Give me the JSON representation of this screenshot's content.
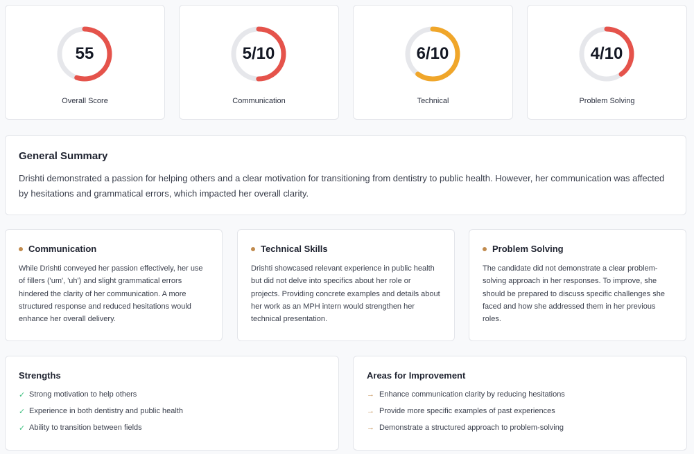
{
  "colors": {
    "low": "#e5534b",
    "mid": "#f0a62a",
    "track": "#e6e7eb",
    "bullet": "#c18b4e",
    "check": "#3fbf7f"
  },
  "scores": [
    {
      "display": "55",
      "label": "Overall Score",
      "fraction": 0.55,
      "color": "#e5534b"
    },
    {
      "display": "5/10",
      "label": "Communication",
      "fraction": 0.5,
      "color": "#e5534b"
    },
    {
      "display": "6/10",
      "label": "Technical",
      "fraction": 0.6,
      "color": "#f0a62a"
    },
    {
      "display": "4/10",
      "label": "Problem Solving",
      "fraction": 0.4,
      "color": "#e5534b"
    }
  ],
  "summary": {
    "title": "General Summary",
    "text": "Drishti demonstrated a passion for helping others and a clear motivation for transitioning from dentistry to public health. However, her communication was affected by hesitations and grammatical errors, which impacted her overall clarity."
  },
  "details": [
    {
      "title": "Communication",
      "text": "While Drishti conveyed her passion effectively, her use of fillers ('um', 'uh') and slight grammatical errors hindered the clarity of her communication. A more structured response and reduced hesitations would enhance her overall delivery."
    },
    {
      "title": "Technical Skills",
      "text": "Drishti showcased relevant experience in public health but did not delve into specifics about her role or projects. Providing concrete examples and details about her work as an MPH intern would strengthen her technical presentation."
    },
    {
      "title": "Problem Solving",
      "text": "The candidate did not demonstrate a clear problem-solving approach in her responses. To improve, she should be prepared to discuss specific challenges she faced and how she addressed them in her previous roles."
    }
  ],
  "strengths": {
    "title": "Strengths",
    "icon": "check-icon",
    "glyph": "✓",
    "items": [
      "Strong motivation to help others",
      "Experience in both dentistry and public health",
      "Ability to transition between fields"
    ]
  },
  "improvements": {
    "title": "Areas for Improvement",
    "icon": "arrow-right-icon",
    "glyph": "→",
    "items": [
      "Enhance communication clarity by reducing hesitations",
      "Provide more specific examples of past experiences",
      "Demonstrate a structured approach to problem-solving"
    ]
  }
}
